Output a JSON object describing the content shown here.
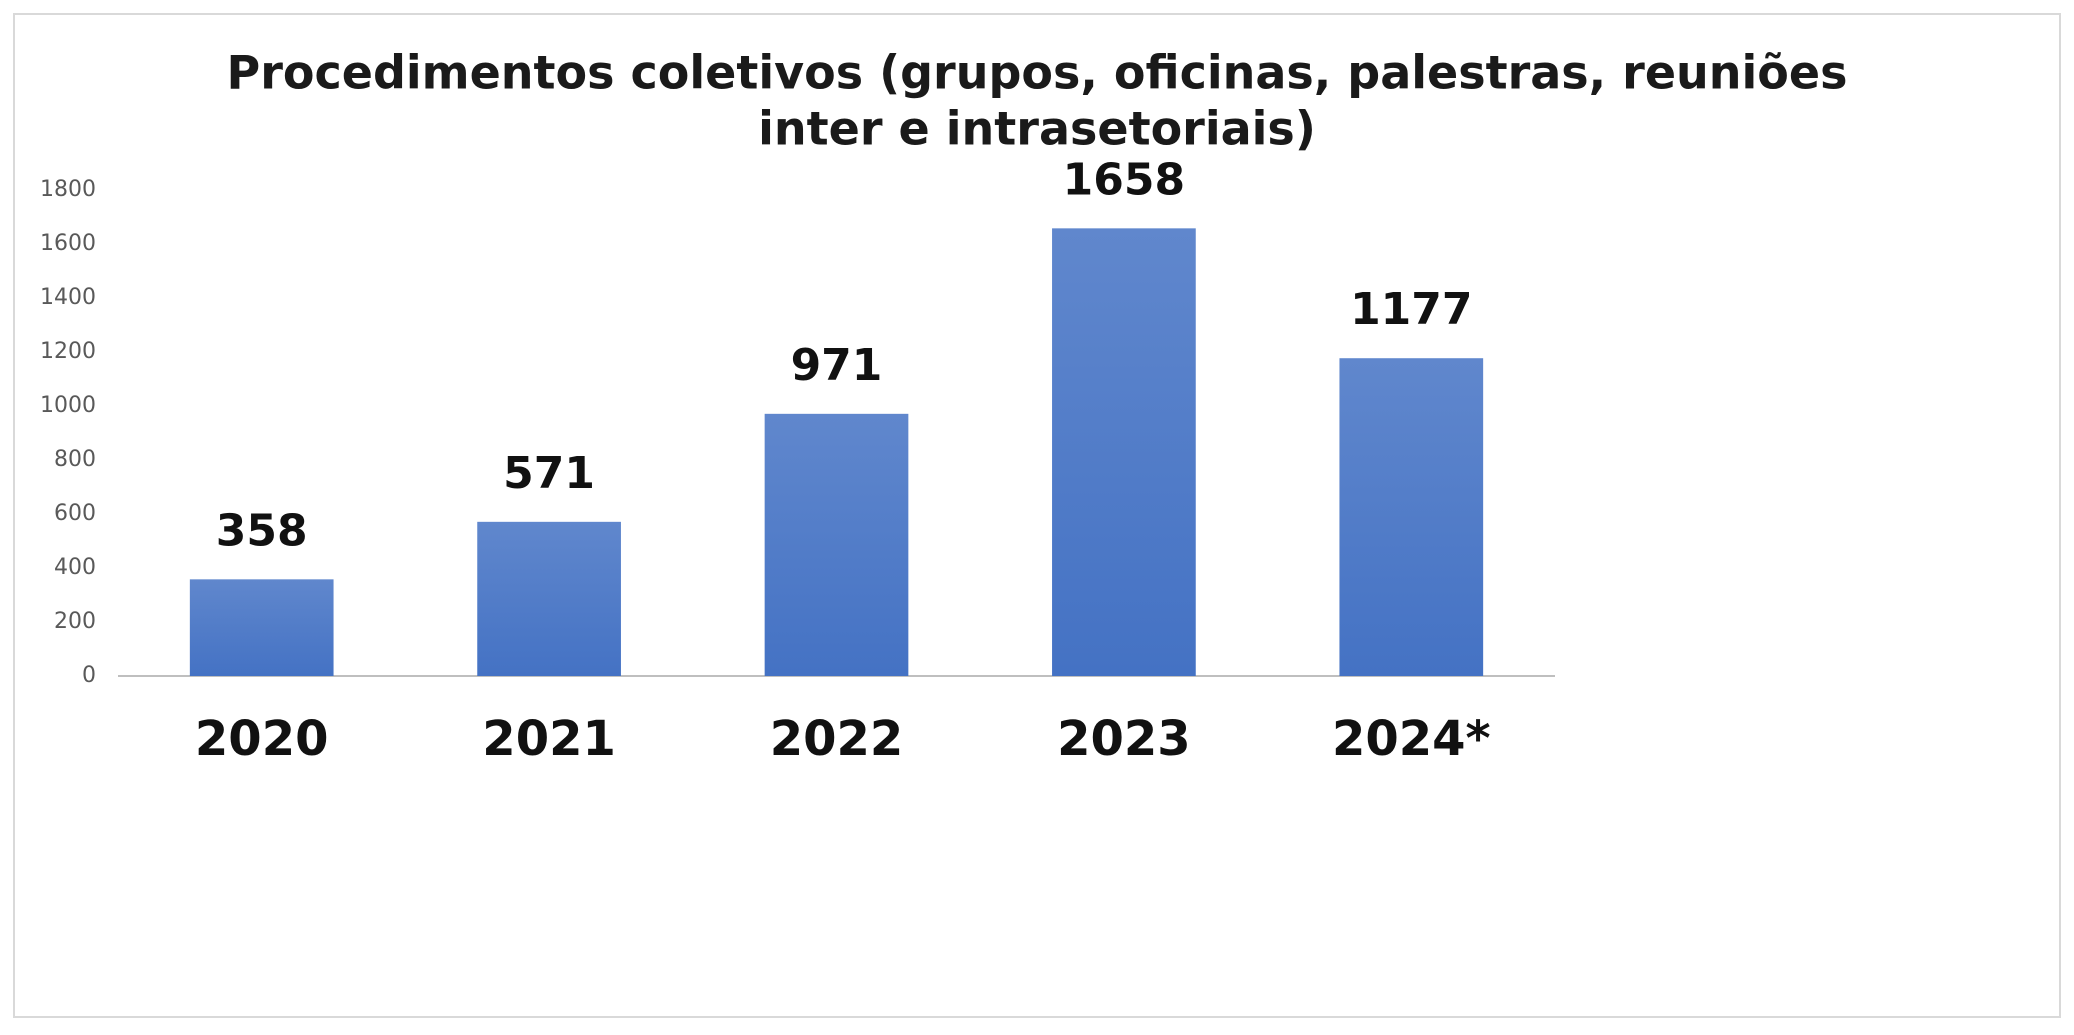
{
  "chart_data": {
    "type": "bar",
    "title": [
      "Procedimentos coletivos (grupos, oficinas, palestras, reuniões",
      "inter e intrasetoriais)"
    ],
    "categories": [
      "2020",
      "2021",
      "2022",
      "2023",
      "2024*"
    ],
    "values": [
      358,
      571,
      971,
      1658,
      1177
    ],
    "color": "#4472c4",
    "ylim": [
      0,
      1800
    ],
    "yticks": [
      0,
      200,
      400,
      600,
      800,
      1000,
      1200,
      1400,
      1600,
      1800
    ],
    "grid": false
  }
}
